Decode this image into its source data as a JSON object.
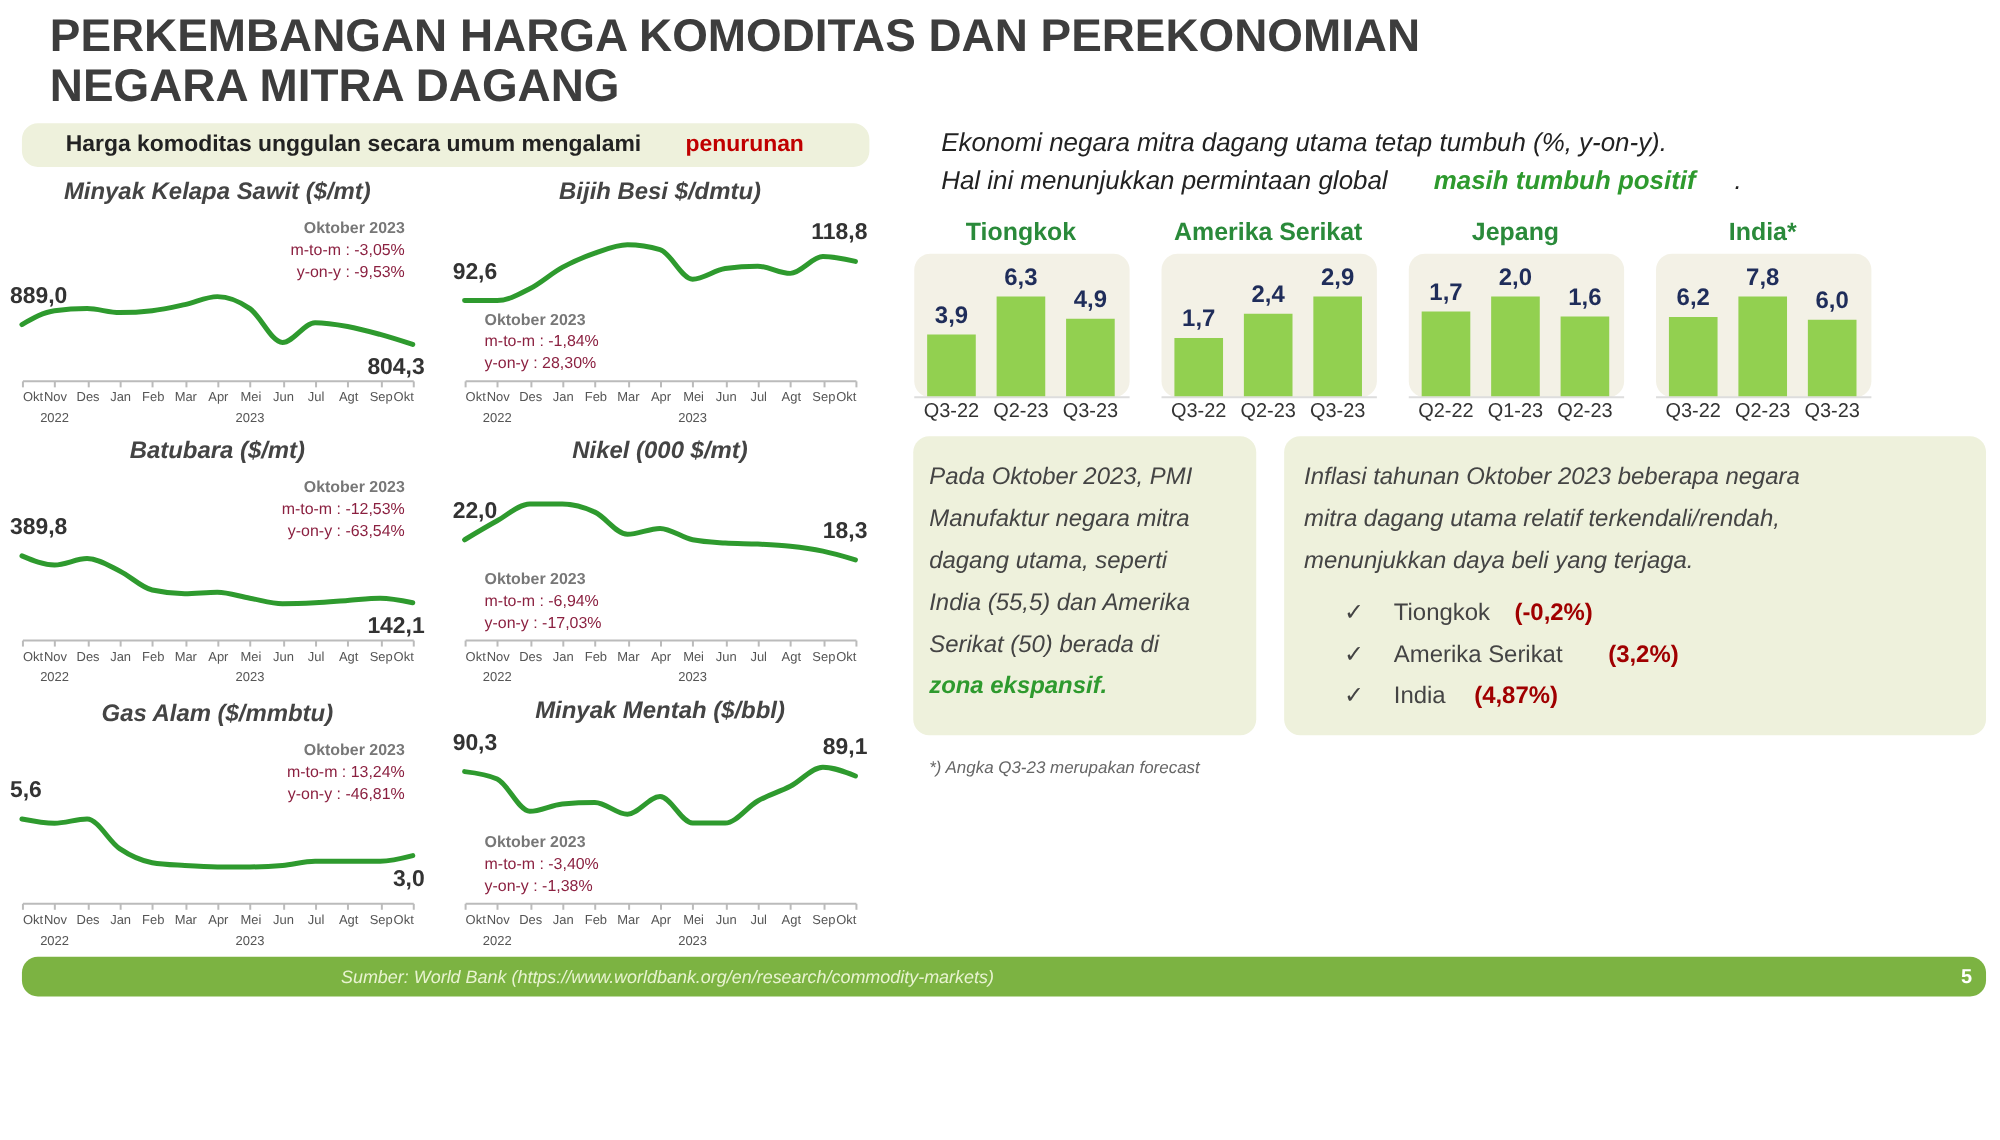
{
  "chart_data": [
    {
      "type": "other",
      "title": "PERKEMBANGAN HARGA KOMODITAS DAN PEREKONOMIAN\nNEGARA MITRA DAGANG"
    },
    {
      "type": "other",
      "annotations": [
        "Harga komoditas unggulan secara umum mengalami ",
        "penurunan"
      ]
    },
    {
      "type": "line",
      "title": "Minyak Kelapa Sawit ($/mt)",
      "categories": [
        "Okt",
        "Nov",
        "Des",
        "Jan",
        "Feb",
        "Mar",
        "Apr",
        "Mei",
        "Jun",
        "Jul",
        "Agt",
        "Sep",
        "Okt"
      ],
      "values": [
        889.0,
        948,
        957,
        940,
        948,
        974,
        1008,
        957,
        813,
        897,
        881,
        847,
        804.3
      ],
      "value_labels": [
        "889,0",
        null,
        null,
        null,
        null,
        null,
        null,
        null,
        null,
        null,
        null,
        null,
        "804,3"
      ],
      "color": "#2e9a2e",
      "annotations": [
        "Oktober 2023",
        "m-to-m  :  -3,05%",
        "y-on-y  :  -9,53%",
        "2022",
        "2023"
      ]
    },
    {
      "type": "line",
      "title": "Bijih Besi $/dmtu)",
      "categories": [
        "Okt",
        "Nov",
        "Des",
        "Jan",
        "Feb",
        "Mar",
        "Apr",
        "Mei",
        "Jun",
        "Jul",
        "Agt",
        "Sep",
        "Okt"
      ],
      "values": [
        92.6,
        92.6,
        100.5,
        114.8,
        124.3,
        129.9,
        126.7,
        106.9,
        114.0,
        115.6,
        110.8,
        122.0,
        118.8
      ],
      "value_labels": [
        "92,6",
        null,
        null,
        null,
        null,
        null,
        null,
        null,
        null,
        null,
        null,
        null,
        "118,8"
      ],
      "color": "#2e9a2e",
      "annotations": [
        "Oktober 2023",
        "m-to-m  :  -1,84%",
        "y-on-y  :  28,30%",
        "2022",
        "2023"
      ]
    },
    {
      "type": "line",
      "title": "Batubara ($/mt)",
      "categories": [
        "Okt",
        "Nov",
        "Des",
        "Jan",
        "Feb",
        "Mar",
        "Apr",
        "Mei",
        "Jun",
        "Jul",
        "Agt",
        "Sep",
        "Okt"
      ],
      "values": [
        389.8,
        341.7,
        375.4,
        310.4,
        209.4,
        190.2,
        197.4,
        166.1,
        137.3,
        142.1,
        154.1,
        166.1,
        142.1
      ],
      "value_labels": [
        "389,8",
        null,
        null,
        null,
        null,
        null,
        null,
        null,
        null,
        null,
        null,
        null,
        "142,1"
      ],
      "color": "#2e9a2e",
      "annotations": [
        "Oktober 2023",
        "m-to-m  :  -12,53%",
        "y-on-y  :  -63,54%",
        "2022",
        "2023"
      ]
    },
    {
      "type": "line",
      "title": "Nikel (000 $/mt)",
      "categories": [
        "Okt",
        "Nov",
        "Des",
        "Jan",
        "Feb",
        "Mar",
        "Apr",
        "Mei",
        "Jun",
        "Jul",
        "Agt",
        "Sep",
        "Okt"
      ],
      "values": [
        22.0,
        25.5,
        28.6,
        28.6,
        27.1,
        23.0,
        24.1,
        22.0,
        21.4,
        21.2,
        20.8,
        19.9,
        18.3
      ],
      "value_labels": [
        "22,0",
        null,
        null,
        null,
        null,
        null,
        null,
        null,
        null,
        null,
        null,
        null,
        "18,3"
      ],
      "color": "#2e9a2e",
      "annotations": [
        "Oktober 2023",
        "m-to-m  :  -6,94%",
        "y-on-y  :  -17,03%",
        "2022",
        "2023"
      ]
    },
    {
      "type": "line",
      "title": "Gas Alam ($/mmbtu)",
      "categories": [
        "Okt",
        "Nov",
        "Des",
        "Jan",
        "Feb",
        "Mar",
        "Apr",
        "Mei",
        "Jun",
        "Jul",
        "Agt",
        "Sep",
        "Okt"
      ],
      "values": [
        5.6,
        5.3,
        5.6,
        3.5,
        2.5,
        2.3,
        2.2,
        2.2,
        2.3,
        2.6,
        2.6,
        2.6,
        3.0
      ],
      "value_labels": [
        "5,6",
        null,
        null,
        null,
        null,
        null,
        null,
        null,
        null,
        null,
        null,
        null,
        "3,0"
      ],
      "color": "#2e9a2e",
      "annotations": [
        "Oktober 2023",
        "m-to-m  :  13,24%",
        "y-on-y  :  -46,81%",
        "2022",
        "2023"
      ]
    },
    {
      "type": "line",
      "title": "Minyak Mentah ($/bbl)",
      "categories": [
        "Okt",
        "Nov",
        "Des",
        "Jan",
        "Feb",
        "Mar",
        "Apr",
        "Mei",
        "Jun",
        "Jul",
        "Agt",
        "Sep",
        "Okt"
      ],
      "values": [
        90.3,
        88.3,
        79.5,
        81.5,
        81.9,
        78.7,
        83.5,
        76.3,
        76.3,
        82.3,
        86.3,
        91.5,
        89.1
      ],
      "value_labels": [
        "90,3",
        null,
        null,
        null,
        null,
        null,
        null,
        null,
        null,
        null,
        null,
        null,
        "89,1"
      ],
      "color": "#2e9a2e",
      "annotations": [
        "Oktober 2023",
        "m-to-m  :  -3,40%",
        "y-on-y  :  -1,38%",
        "2022",
        "2023"
      ]
    },
    {
      "type": "other",
      "annotations": [
        "Ekonomi negara mitra dagang utama tetap tumbuh (%, y-on-y).",
        "Hal ini menunjukkan permintaan global ",
        "masih tumbuh positif",
        "."
      ]
    },
    {
      "type": "bar",
      "title": "Tiongkok",
      "categories": [
        "Q3-22",
        "Q2-23",
        "Q3-23"
      ],
      "values": [
        3.9,
        6.3,
        4.9
      ],
      "value_labels": [
        "3,9",
        "6,3",
        "4,9"
      ],
      "color": "#92d050"
    },
    {
      "type": "bar",
      "title": "Amerika Serikat",
      "categories": [
        "Q3-22",
        "Q2-23",
        "Q3-23"
      ],
      "values": [
        1.7,
        2.4,
        2.9
      ],
      "value_labels": [
        "1,7",
        "2,4",
        "2,9"
      ],
      "color": "#92d050"
    },
    {
      "type": "bar",
      "title": "Jepang",
      "categories": [
        "Q2-22",
        "Q1-23",
        "Q2-23"
      ],
      "values": [
        1.7,
        2.0,
        1.6
      ],
      "value_labels": [
        "1,7",
        "2,0",
        "1,6"
      ],
      "color": "#92d050"
    },
    {
      "type": "bar",
      "title": "India*",
      "categories": [
        "Q3-22",
        "Q2-23",
        "Q3-23"
      ],
      "values": [
        6.2,
        7.8,
        6.0
      ],
      "value_labels": [
        "6,2",
        "7,8",
        "6,0"
      ],
      "color": "#92d050"
    },
    {
      "type": "other",
      "annotations": [
        "Pada Oktober 2023, PMI",
        "Manufaktur negara mitra",
        "dagang utama, seperti",
        "India (55,5) dan Amerika",
        "Serikat (50) berada di",
        "zona ekspansif."
      ]
    },
    {
      "type": "other",
      "annotations": [
        "Inflasi tahunan Oktober 2023 beberapa negara",
        "mitra dagang utama relatif terkendali/rendah,",
        "menunjukkan daya beli yang terjaga.",
        "✓",
        "Tiongkok ",
        "(-0,2%)",
        "✓",
        "Amerika Serikat ",
        "(3,2%)",
        "✓",
        "India ",
        "(4,87%)"
      ]
    },
    {
      "type": "other",
      "annotations": [
        "*) Angka Q3-23 merupakan forecast"
      ]
    },
    {
      "type": "other",
      "annotations": [
        "Sumber: World Bank (https://www.worldbank.org/en/research/commodity-markets)",
        "5"
      ]
    }
  ]
}
